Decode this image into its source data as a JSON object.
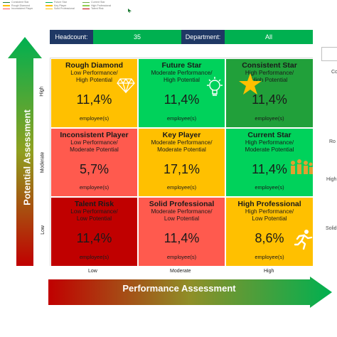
{
  "legend": [
    {
      "label": "Consistent Star",
      "color": "#1e7b34"
    },
    {
      "label": "Future Star",
      "color": "#00b050"
    },
    {
      "label": "Current Star",
      "color": "#70ad47"
    },
    {
      "label": "Rough Diamond",
      "color": "#ffc000"
    },
    {
      "label": "Key Player",
      "color": "#ffbf00"
    },
    {
      "label": "High Professional",
      "color": "#92d050"
    },
    {
      "label": "Inconsistent Player",
      "color": "#ff5050"
    },
    {
      "label": "Solid Professional",
      "color": "#ffc000"
    },
    {
      "label": "Talent Risk",
      "color": "#c00000"
    }
  ],
  "header": {
    "headcount_label": "Headcount:",
    "headcount_value": "35",
    "department_label": "Department:",
    "department_value": "All"
  },
  "axes": {
    "y_title": "Potential Assessment",
    "x_title": "Performance Assessment",
    "y_levels": [
      "High",
      "Moderate",
      "Low"
    ],
    "x_levels": [
      "Low",
      "Moderate",
      "High"
    ]
  },
  "cells": [
    {
      "title": "Rough Diamond",
      "sub1": "Low Performance/",
      "sub2": "High Potential",
      "pct": "11,4%",
      "emp": "employee(s)",
      "color": "#ffc000",
      "icon": "diamond-icon"
    },
    {
      "title": "Future Star",
      "sub1": "Moderate Performance/",
      "sub2": "High Potential",
      "pct": "11,4%",
      "emp": "employee(s)",
      "color": "#00d25b",
      "icon": "lightbulb-icon"
    },
    {
      "title": "Consistent Star",
      "sub1": "High Performance/",
      "sub2": "High Potential",
      "pct": "11,4%",
      "emp": "employee(s)",
      "color": "#21a03a",
      "icon": "star-icon"
    },
    {
      "title": "Inconsistent Player",
      "sub1": "Low Performance/",
      "sub2": "Moderate Potential",
      "pct": "5,7%",
      "emp": "employee(s)",
      "color": "#ff5a4e",
      "icon": ""
    },
    {
      "title": "Key Player",
      "sub1": "Moderate Performance/",
      "sub2": "Moderate Potential",
      "pct": "17,1%",
      "emp": "employee(s)",
      "color": "#ffc000",
      "icon": ""
    },
    {
      "title": "Current Star",
      "sub1": "High Performance/",
      "sub2": "Moderate Potential",
      "pct": "11,4%",
      "emp": "employee(s)",
      "color": "#00d25b",
      "icon": "crowd-icon"
    },
    {
      "title": "Talent Risk",
      "sub1": "Low Performance/",
      "sub2": "Low Potential",
      "pct": "11,4%",
      "emp": "employee(s)",
      "color": "#c00000",
      "icon": ""
    },
    {
      "title": "Solid Professional",
      "sub1": "Moderate Performance/",
      "sub2": "Low Potential",
      "pct": "11,4%",
      "emp": "employee(s)",
      "color": "#ff5a4e",
      "icon": ""
    },
    {
      "title": "High Professional",
      "sub1": "High Performance/",
      "sub2": "Low Potential",
      "pct": "8,6%",
      "emp": "employee(s)",
      "color": "#ffc000",
      "icon": "runner-icon"
    }
  ],
  "right_labels": [
    "Co",
    "Ro",
    "High",
    "Solid"
  ]
}
